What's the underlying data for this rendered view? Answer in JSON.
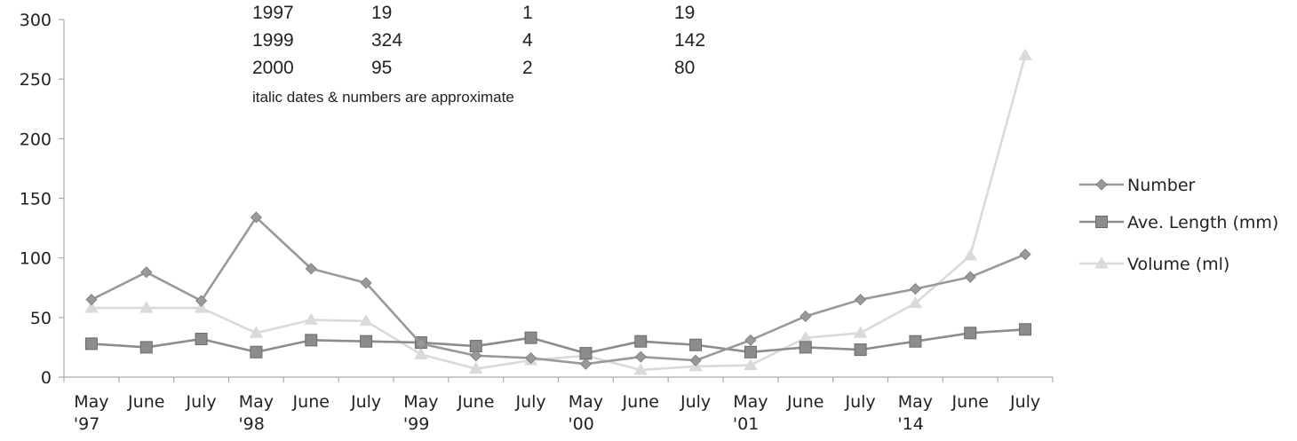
{
  "chart_data": {
    "type": "line",
    "categories": [
      [
        "May",
        "'97"
      ],
      [
        "June",
        ""
      ],
      [
        "July",
        ""
      ],
      [
        "May",
        "'98"
      ],
      [
        "June",
        ""
      ],
      [
        "July",
        ""
      ],
      [
        "May",
        "'99"
      ],
      [
        "June",
        ""
      ],
      [
        "July",
        ""
      ],
      [
        "May",
        "'00"
      ],
      [
        "June",
        ""
      ],
      [
        "July",
        ""
      ],
      [
        "May",
        "'01"
      ],
      [
        "June",
        ""
      ],
      [
        "July",
        ""
      ],
      [
        "May",
        "'14"
      ],
      [
        "June",
        ""
      ],
      [
        "July",
        ""
      ]
    ],
    "ylim": [
      0,
      300
    ],
    "yticks": [
      0,
      50,
      100,
      150,
      200,
      250,
      300
    ],
    "series": [
      {
        "name": "Number",
        "marker": "diamond",
        "color": "#999999",
        "values": [
          65,
          88,
          64,
          134,
          91,
          79,
          28,
          18,
          16,
          11,
          17,
          14,
          31,
          51,
          65,
          74,
          84,
          103
        ]
      },
      {
        "name": "Ave. Length (mm)",
        "marker": "square",
        "color": "#8c8c8c",
        "values": [
          28,
          25,
          32,
          21,
          31,
          30,
          29,
          26,
          33,
          20,
          30,
          27,
          21,
          25,
          23,
          30,
          37,
          40
        ]
      },
      {
        "name": "Volume (ml)",
        "marker": "triangle",
        "color": "#dadada",
        "values": [
          58,
          58,
          58,
          37,
          48,
          47,
          19,
          7,
          14,
          18,
          6,
          9,
          10,
          33,
          37,
          62,
          102,
          270
        ]
      }
    ],
    "legend_position": "right",
    "grid": false,
    "inset_table": {
      "rows": [
        [
          "1997",
          "19",
          "1",
          "19"
        ],
        [
          "1999",
          "324",
          "4",
          "142"
        ],
        [
          "2000",
          "95",
          "2",
          "80"
        ]
      ],
      "note": "italic dates & numbers are approximate"
    }
  }
}
